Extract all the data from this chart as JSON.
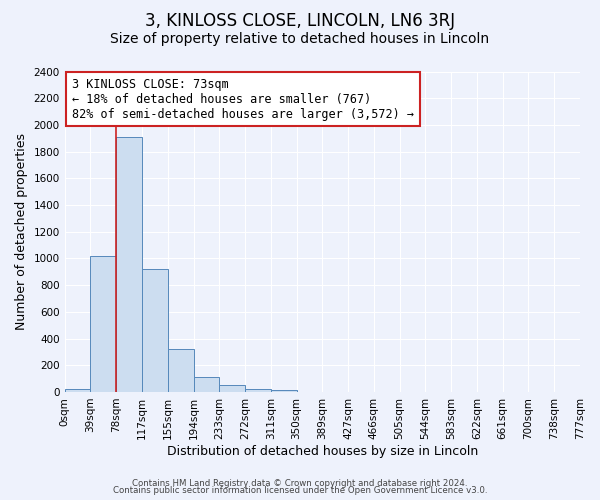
{
  "title": "3, KINLOSS CLOSE, LINCOLN, LN6 3RJ",
  "subtitle": "Size of property relative to detached houses in Lincoln",
  "xlabel": "Distribution of detached houses by size in Lincoln",
  "ylabel": "Number of detached properties",
  "bar_values": [
    25,
    1020,
    1910,
    920,
    325,
    110,
    55,
    25,
    15,
    0,
    0,
    0,
    0,
    0,
    0,
    0,
    0,
    0,
    0,
    0
  ],
  "bin_labels": [
    "0sqm",
    "39sqm",
    "78sqm",
    "117sqm",
    "155sqm",
    "194sqm",
    "233sqm",
    "272sqm",
    "311sqm",
    "350sqm",
    "389sqm",
    "427sqm",
    "466sqm",
    "505sqm",
    "544sqm",
    "583sqm",
    "622sqm",
    "661sqm",
    "700sqm",
    "738sqm",
    "777sqm"
  ],
  "bar_color": "#ccddf0",
  "bar_edge_color": "#5588bb",
  "bg_color": "#eef2fc",
  "grid_color": "#ffffff",
  "vline_x": 2.0,
  "vline_color": "#cc2222",
  "annotation_text": "3 KINLOSS CLOSE: 73sqm\n← 18% of detached houses are smaller (767)\n82% of semi-detached houses are larger (3,572) →",
  "annotation_box_color": "#ffffff",
  "annotation_box_edge": "#cc2222",
  "ylim": [
    0,
    2400
  ],
  "yticks": [
    0,
    200,
    400,
    600,
    800,
    1000,
    1200,
    1400,
    1600,
    1800,
    2000,
    2200,
    2400
  ],
  "footer1": "Contains HM Land Registry data © Crown copyright and database right 2024.",
  "footer2": "Contains public sector information licensed under the Open Government Licence v3.0.",
  "title_fontsize": 12,
  "subtitle_fontsize": 10,
  "annotation_fontsize": 8.5,
  "axis_label_fontsize": 9,
  "tick_fontsize": 7.5
}
